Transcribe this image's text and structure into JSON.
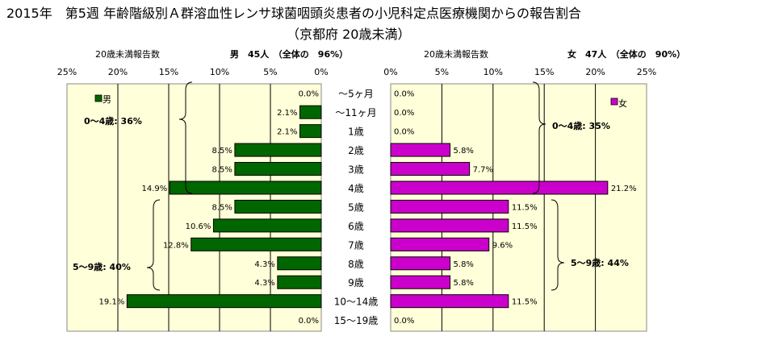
{
  "chart_data": [
    {
      "type": "bar",
      "title": "2015年　第5週 年齢階級別Ａ群溶血性レンサ球菌咽頭炎患者の小児科定点医療機関からの報告割合",
      "subtitle": "（京都府 20歳未満）",
      "categories": [
        "～5ヶ月",
        "～11ヶ月",
        "1歳",
        "2歳",
        "3歳",
        "4歳",
        "5歳",
        "6歳",
        "7歳",
        "8歳",
        "9歳",
        "10～14歳",
        "15～19歳"
      ],
      "xlim": [
        0,
        25
      ],
      "x_ticks": [
        "25%",
        "20%",
        "15%",
        "10%",
        "5%",
        "0%"
      ],
      "header_left": "20歳未満報告数",
      "header_right": "男　45人　（全体の　96%）",
      "legend": "男",
      "series": [
        {
          "name": "男",
          "color": "#006600",
          "values": [
            0.0,
            2.1,
            2.1,
            8.5,
            8.5,
            14.9,
            8.5,
            10.6,
            12.8,
            4.3,
            4.3,
            19.1,
            0.0
          ],
          "labels": [
            "0.0%",
            "2.1%",
            "2.1%",
            "8.5%",
            "8.5%",
            "14.9%",
            "8.5%",
            "10.6%",
            "12.8%",
            "4.3%",
            "4.3%",
            "19.1%",
            "0.0%"
          ]
        }
      ],
      "bracket_labels": [
        "0～4歳: 36%",
        "5～9歳: 40%"
      ]
    },
    {
      "type": "bar",
      "categories": [
        "～5ヶ月",
        "～11ヶ月",
        "1歳",
        "2歳",
        "3歳",
        "4歳",
        "5歳",
        "6歳",
        "7歳",
        "8歳",
        "9歳",
        "10～14歳",
        "15～19歳"
      ],
      "xlim": [
        0,
        25
      ],
      "x_ticks": [
        "0%",
        "5%",
        "10%",
        "15%",
        "20%",
        "25%"
      ],
      "header_left": "20歳未満報告数",
      "header_right": "女　47人　（全体の　90%）",
      "legend": "女",
      "series": [
        {
          "name": "女",
          "color": "#cc00cc",
          "values": [
            0.0,
            0.0,
            0.0,
            5.8,
            7.7,
            21.2,
            11.5,
            11.5,
            9.6,
            5.8,
            5.8,
            11.5,
            0.0
          ],
          "labels": [
            "0.0%",
            "0.0%",
            "0.0%",
            "5.8%",
            "7.7%",
            "21.2%",
            "11.5%",
            "11.5%",
            "9.6%",
            "5.8%",
            "5.8%",
            "11.5%",
            "0.0%"
          ]
        }
      ],
      "bracket_labels": [
        "0～4歳: 35%",
        "5～9歳: 44%"
      ]
    }
  ]
}
